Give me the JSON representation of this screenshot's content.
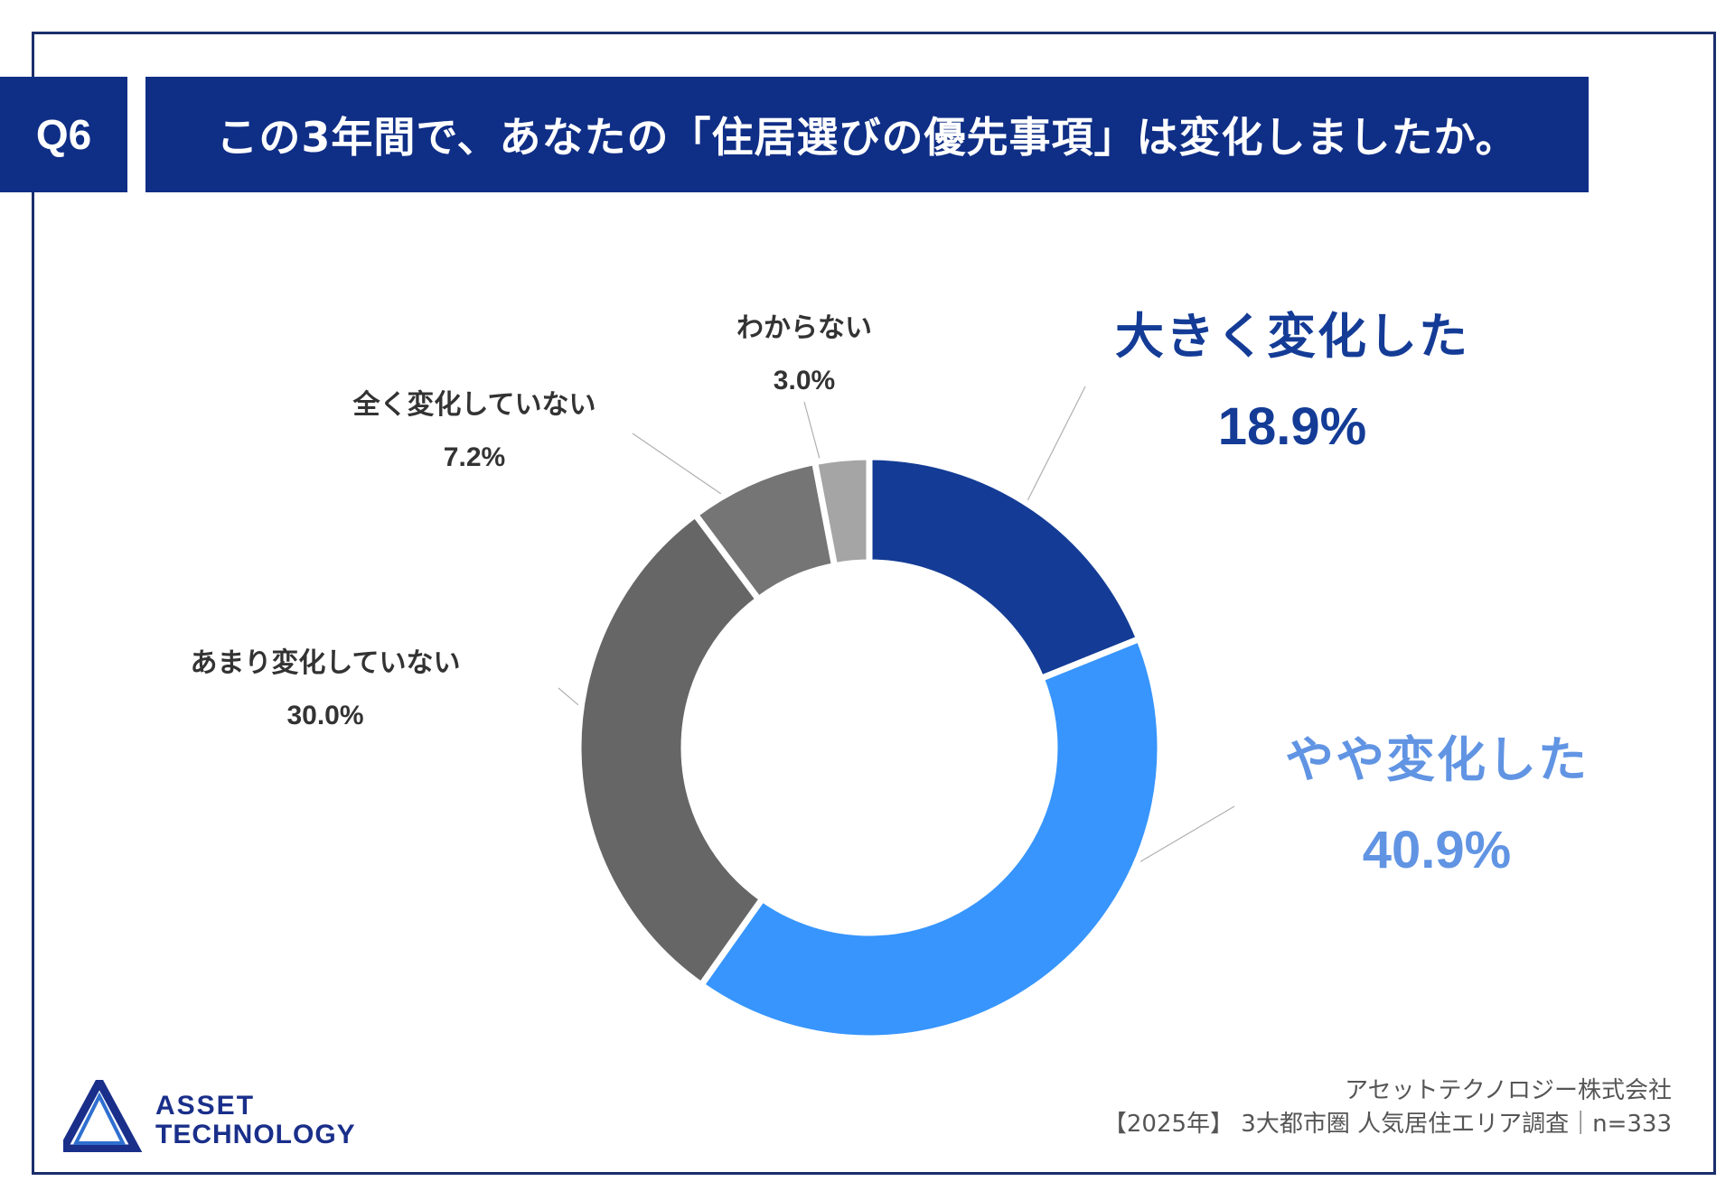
{
  "header": {
    "badge": "Q6",
    "title": "この3年間で、あなたの「住居選びの優先事項」は変化しましたか。"
  },
  "chart_data": {
    "type": "pie",
    "variant": "donut",
    "title": "この3年間で、あなたの「住居選びの優先事項」は変化しましたか。",
    "unit": "%",
    "start_angle_deg": 0,
    "direction": "clockwise",
    "slices": [
      {
        "name": "大きく変化した",
        "value": 18.9,
        "label": "18.9%",
        "color": "#143c96",
        "label_color": "#143c96"
      },
      {
        "name": "やや変化した",
        "value": 40.9,
        "label": "40.9%",
        "color": "#3795fd",
        "label_color": "#6194e3"
      },
      {
        "name": "あまり変化していない",
        "value": 30.0,
        "label": "30.0%",
        "color": "#666666",
        "label_color": "#333333"
      },
      {
        "name": "全く変化していない",
        "value": 7.2,
        "label": "7.2%",
        "color": "#757575",
        "label_color": "#333333"
      },
      {
        "name": "わからない",
        "value": 3.0,
        "label": "3.0%",
        "color": "#a5a5a5",
        "label_color": "#333333"
      }
    ]
  },
  "footer": {
    "company": "アセットテクノロジー株式会社",
    "survey": "【2025年】 3大都市圏 人気居住エリア調査｜n=333"
  },
  "logo": {
    "line1": "ASSET",
    "line2": "TECHNOLOGY",
    "color": "#1a2f8a"
  }
}
